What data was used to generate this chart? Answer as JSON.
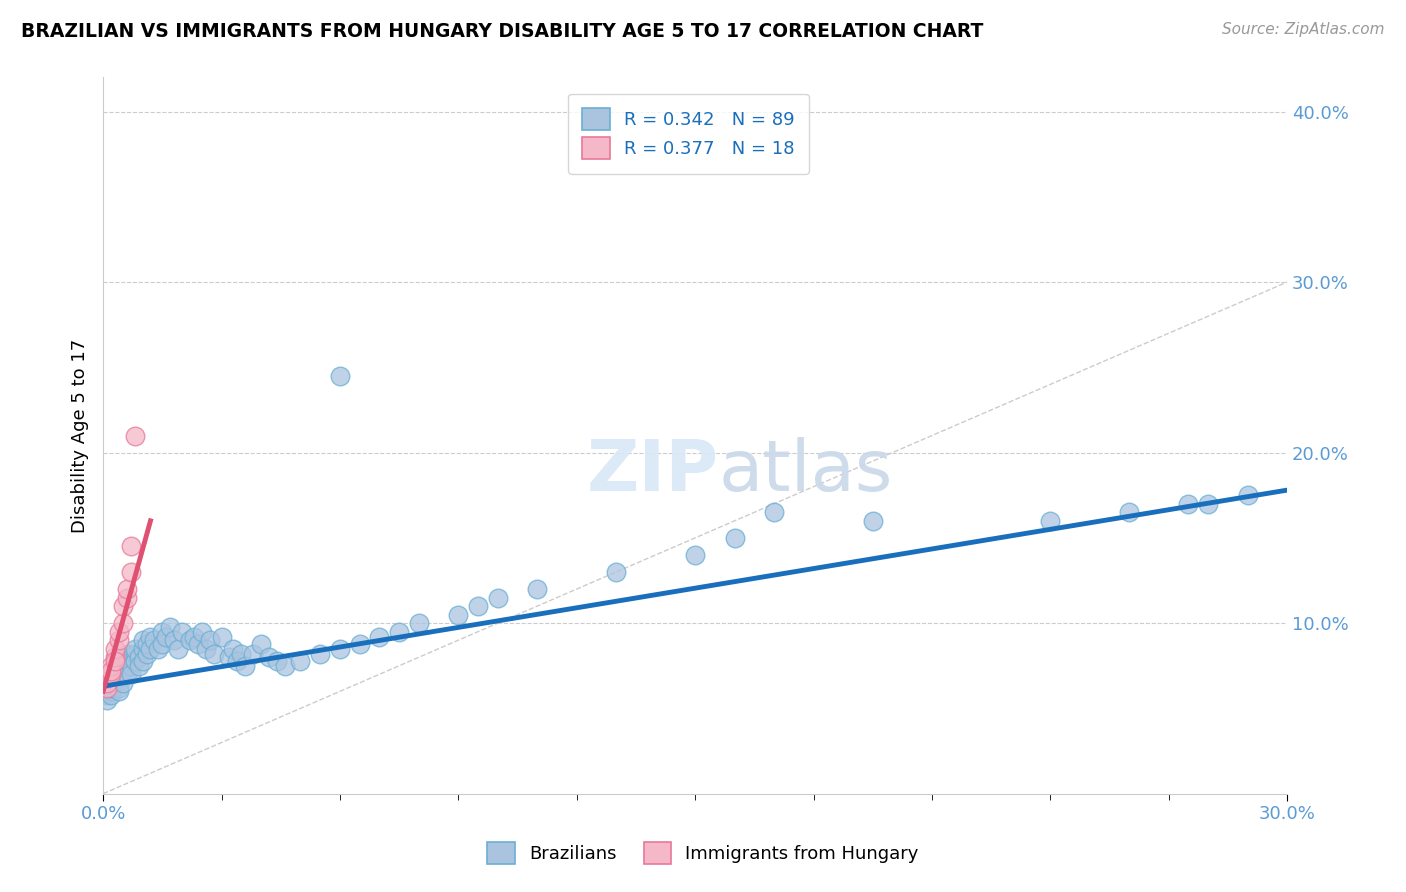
{
  "title": "BRAZILIAN VS IMMIGRANTS FROM HUNGARY DISABILITY AGE 5 TO 17 CORRELATION CHART",
  "source_text": "Source: ZipAtlas.com",
  "ylabel": "Disability Age 5 to 17",
  "xlim": [
    0,
    0.3
  ],
  "ylim": [
    0,
    0.42
  ],
  "legend_r1": "R = 0.342",
  "legend_n1": "N = 89",
  "legend_r2": "R = 0.377",
  "legend_n2": "N = 18",
  "brazil_color": "#aac4e0",
  "hungary_color": "#f4b8c8",
  "brazil_edge": "#6aafd4",
  "hungary_edge": "#e87898",
  "trendline_brazil_color": "#1a6fbd",
  "trendline_hungary_color": "#e05070",
  "ref_line_color": "#cccccc",
  "brazil_x": [
    0.001,
    0.001,
    0.001,
    0.001,
    0.001,
    0.002,
    0.002,
    0.002,
    0.002,
    0.003,
    0.003,
    0.003,
    0.003,
    0.004,
    0.004,
    0.004,
    0.004,
    0.004,
    0.005,
    0.005,
    0.005,
    0.005,
    0.006,
    0.006,
    0.006,
    0.007,
    0.007,
    0.007,
    0.008,
    0.008,
    0.008,
    0.009,
    0.009,
    0.01,
    0.01,
    0.01,
    0.011,
    0.011,
    0.012,
    0.012,
    0.013,
    0.014,
    0.015,
    0.015,
    0.016,
    0.017,
    0.018,
    0.019,
    0.02,
    0.022,
    0.023,
    0.024,
    0.025,
    0.026,
    0.027,
    0.028,
    0.03,
    0.032,
    0.033,
    0.034,
    0.035,
    0.036,
    0.038,
    0.04,
    0.042,
    0.044,
    0.046,
    0.05,
    0.055,
    0.06,
    0.065,
    0.07,
    0.075,
    0.08,
    0.09,
    0.095,
    0.1,
    0.11,
    0.13,
    0.15,
    0.16,
    0.17,
    0.195,
    0.24,
    0.26,
    0.275,
    0.28,
    0.29,
    0.06
  ],
  "brazil_y": [
    0.06,
    0.062,
    0.058,
    0.055,
    0.065,
    0.065,
    0.06,
    0.058,
    0.062,
    0.07,
    0.065,
    0.068,
    0.072,
    0.07,
    0.075,
    0.068,
    0.062,
    0.06,
    0.075,
    0.078,
    0.072,
    0.065,
    0.078,
    0.082,
    0.07,
    0.08,
    0.075,
    0.07,
    0.082,
    0.078,
    0.085,
    0.08,
    0.075,
    0.085,
    0.078,
    0.09,
    0.082,
    0.088,
    0.092,
    0.085,
    0.09,
    0.085,
    0.095,
    0.088,
    0.092,
    0.098,
    0.09,
    0.085,
    0.095,
    0.09,
    0.092,
    0.088,
    0.095,
    0.085,
    0.09,
    0.082,
    0.092,
    0.08,
    0.085,
    0.078,
    0.082,
    0.075,
    0.082,
    0.088,
    0.08,
    0.078,
    0.075,
    0.078,
    0.082,
    0.085,
    0.088,
    0.092,
    0.095,
    0.1,
    0.105,
    0.11,
    0.115,
    0.12,
    0.13,
    0.14,
    0.15,
    0.165,
    0.16,
    0.16,
    0.165,
    0.17,
    0.17,
    0.175,
    0.245
  ],
  "hungary_x": [
    0.001,
    0.001,
    0.001,
    0.002,
    0.002,
    0.002,
    0.003,
    0.003,
    0.003,
    0.004,
    0.004,
    0.005,
    0.005,
    0.006,
    0.006,
    0.007,
    0.007,
    0.008
  ],
  "hungary_y": [
    0.062,
    0.065,
    0.068,
    0.07,
    0.075,
    0.072,
    0.08,
    0.085,
    0.078,
    0.09,
    0.095,
    0.1,
    0.11,
    0.115,
    0.12,
    0.13,
    0.145,
    0.21
  ],
  "brazil_trend_x0": 0.0,
  "brazil_trend_y0": 0.063,
  "brazil_trend_x1": 0.3,
  "brazil_trend_y1": 0.178,
  "hungary_trend_x0": 0.0,
  "hungary_trend_y0": 0.06,
  "hungary_trend_x1": 0.012,
  "hungary_trend_y1": 0.16
}
